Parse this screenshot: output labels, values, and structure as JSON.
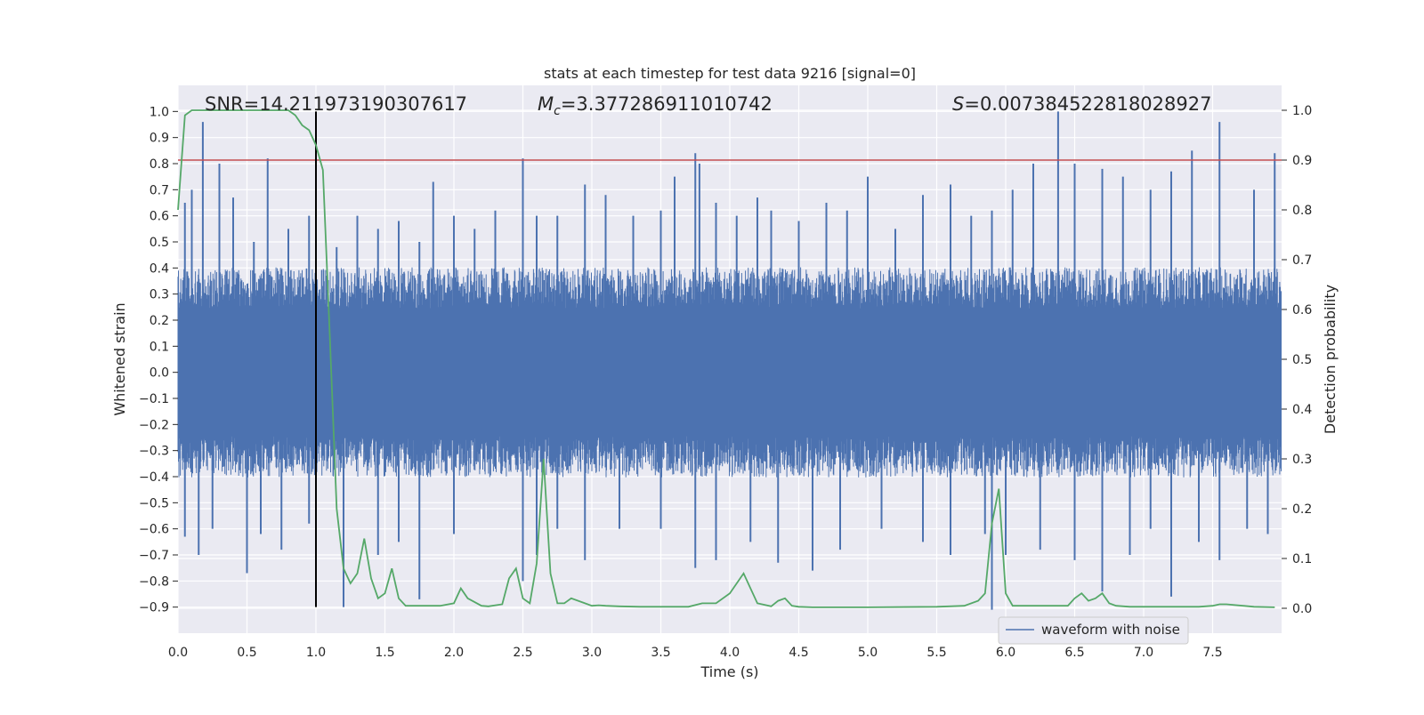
{
  "chart_data": {
    "type": "line",
    "title": "stats at each timestep for test data 9216 [signal=0]",
    "xlabel": "Time (s)",
    "ylabel_left": "Whitened strain",
    "ylabel_right": "Detection probability",
    "xlim": [
      0,
      8
    ],
    "ylim_left": [
      -1.0,
      1.1
    ],
    "ylim_right": [
      -0.05,
      1.05
    ],
    "x_ticks": [
      0.0,
      0.5,
      1.0,
      1.5,
      2.0,
      2.5,
      3.0,
      3.5,
      4.0,
      4.5,
      5.0,
      5.5,
      6.0,
      6.5,
      7.0,
      7.5
    ],
    "x_tick_labels": [
      "0.0",
      "0.5",
      "1.0",
      "1.5",
      "2.0",
      "2.5",
      "3.0",
      "3.5",
      "4.0",
      "4.5",
      "5.0",
      "5.5",
      "6.0",
      "6.5",
      "7.0",
      "7.5"
    ],
    "y_left_ticks": [
      1.0,
      0.9,
      0.8,
      0.7,
      0.6,
      0.5,
      0.4,
      0.3,
      0.2,
      0.1,
      0.0,
      -0.1,
      -0.2,
      -0.3,
      -0.4,
      -0.5,
      -0.6,
      -0.7,
      -0.8,
      -0.9
    ],
    "y_left_tick_labels": [
      "1.0",
      "0.9",
      "0.8",
      "0.7",
      "0.6",
      "0.5",
      "0.4",
      "0.3",
      "0.2",
      "0.1",
      "0.0",
      "−0.1",
      "−0.2",
      "−0.3",
      "−0.4",
      "−0.5",
      "−0.6",
      "−0.7",
      "−0.8",
      "−0.9"
    ],
    "y_right_ticks": [
      1.0,
      0.9,
      0.8,
      0.7,
      0.6,
      0.5,
      0.4,
      0.3,
      0.2,
      0.1,
      0.0
    ],
    "y_right_tick_labels": [
      "1.0",
      "0.9",
      "0.8",
      "0.7",
      "0.6",
      "0.5",
      "0.4",
      "0.3",
      "0.2",
      "0.1",
      "0.0"
    ],
    "grid": true,
    "legend_position": "lower-right",
    "annotations": {
      "snr": "SNR=14.211973190307617",
      "mc_symbol": "M",
      "mc_sub": "c",
      "mc_value": "=3.377286911010742",
      "s_symbol": "S",
      "s_value": "=0.007384522818028927"
    },
    "series": [
      {
        "name": "waveform with noise",
        "axis": "left",
        "color": "#4c72b0",
        "style": "dense-oscillation",
        "typical_envelope": [
          -0.35,
          0.35
        ],
        "x_spikes": [
          0.05,
          0.1,
          0.18,
          0.3,
          0.4,
          0.55,
          0.65,
          0.8,
          0.95,
          1.15,
          1.3,
          1.45,
          1.6,
          1.75,
          1.85,
          2.0,
          2.15,
          2.3,
          2.5,
          2.6,
          2.75,
          2.95,
          3.1,
          3.3,
          3.5,
          3.6,
          3.75,
          3.78,
          3.9,
          4.05,
          4.2,
          4.3,
          4.5,
          4.7,
          4.85,
          5.0,
          5.2,
          5.4,
          5.6,
          5.75,
          5.9,
          6.05,
          6.2,
          6.38,
          6.5,
          6.7,
          6.85,
          7.05,
          7.2,
          7.35,
          7.55,
          7.8,
          7.95
        ],
        "y_spikes": [
          0.65,
          0.7,
          0.96,
          0.8,
          0.67,
          0.5,
          0.82,
          0.55,
          0.6,
          0.48,
          0.6,
          0.55,
          0.58,
          0.5,
          0.73,
          0.6,
          0.55,
          0.62,
          0.82,
          0.6,
          0.6,
          0.72,
          0.68,
          0.6,
          0.62,
          0.75,
          0.84,
          0.8,
          0.65,
          0.6,
          0.67,
          0.62,
          0.58,
          0.65,
          0.62,
          0.75,
          0.55,
          0.68,
          0.72,
          0.6,
          0.62,
          0.7,
          0.8,
          1.0,
          0.8,
          0.78,
          0.75,
          0.7,
          0.77,
          0.85,
          0.96,
          0.7,
          0.84
        ],
        "x_neg_spikes": [
          0.05,
          0.15,
          0.25,
          0.5,
          0.6,
          0.75,
          0.95,
          1.2,
          1.45,
          1.6,
          1.75,
          2.0,
          2.5,
          2.6,
          2.75,
          2.95,
          3.2,
          3.5,
          3.75,
          3.9,
          4.15,
          4.35,
          4.6,
          4.8,
          5.1,
          5.4,
          5.6,
          5.85,
          5.9,
          6.0,
          6.25,
          6.5,
          6.7,
          6.9,
          7.05,
          7.2,
          7.4,
          7.55,
          7.75,
          7.9
        ],
        "y_neg_spikes": [
          -0.63,
          -0.7,
          -0.6,
          -0.77,
          -0.62,
          -0.68,
          -0.58,
          -0.9,
          -0.7,
          -0.65,
          -0.87,
          -0.62,
          -0.8,
          -0.7,
          -0.6,
          -0.72,
          -0.6,
          -0.6,
          -0.75,
          -0.72,
          -0.65,
          -0.73,
          -0.76,
          -0.68,
          -0.6,
          -0.65,
          -0.7,
          -0.62,
          -0.91,
          -0.7,
          -0.68,
          -0.72,
          -0.84,
          -0.7,
          -0.6,
          -0.86,
          -0.65,
          -0.72,
          -0.6,
          -0.62
        ]
      },
      {
        "name": "",
        "axis": "right",
        "color": "#55a868",
        "x": [
          0.0,
          0.05,
          0.1,
          0.2,
          0.3,
          0.4,
          0.5,
          0.6,
          0.7,
          0.8,
          0.85,
          0.9,
          0.95,
          1.0,
          1.05,
          1.1,
          1.15,
          1.2,
          1.25,
          1.3,
          1.35,
          1.4,
          1.45,
          1.5,
          1.55,
          1.6,
          1.65,
          1.7,
          1.8,
          1.9,
          2.0,
          2.05,
          2.1,
          2.2,
          2.25,
          2.35,
          2.4,
          2.45,
          2.5,
          2.55,
          2.6,
          2.65,
          2.7,
          2.75,
          2.8,
          2.85,
          2.95,
          3.0,
          3.05,
          3.1,
          3.2,
          3.35,
          3.5,
          3.7,
          3.8,
          3.9,
          4.0,
          4.1,
          4.2,
          4.3,
          4.35,
          4.4,
          4.45,
          4.5,
          4.6,
          5.0,
          5.5,
          5.7,
          5.8,
          5.85,
          5.9,
          5.95,
          6.0,
          6.05,
          6.1,
          6.2,
          6.3,
          6.45,
          6.5,
          6.55,
          6.6,
          6.65,
          6.7,
          6.75,
          6.8,
          6.9,
          7.0,
          7.2,
          7.4,
          7.5,
          7.55,
          7.6,
          7.8,
          7.95
        ],
        "values": [
          0.8,
          0.99,
          1.0,
          1.0,
          1.0,
          1.0,
          1.0,
          1.0,
          1.0,
          1.0,
          0.99,
          0.97,
          0.96,
          0.93,
          0.88,
          0.55,
          0.2,
          0.08,
          0.05,
          0.07,
          0.14,
          0.06,
          0.02,
          0.03,
          0.08,
          0.02,
          0.005,
          0.005,
          0.005,
          0.005,
          0.01,
          0.04,
          0.02,
          0.005,
          0.004,
          0.008,
          0.06,
          0.08,
          0.02,
          0.01,
          0.09,
          0.3,
          0.07,
          0.01,
          0.01,
          0.02,
          0.01,
          0.005,
          0.006,
          0.005,
          0.004,
          0.003,
          0.003,
          0.003,
          0.01,
          0.01,
          0.03,
          0.07,
          0.01,
          0.004,
          0.015,
          0.02,
          0.005,
          0.003,
          0.002,
          0.002,
          0.003,
          0.005,
          0.015,
          0.03,
          0.17,
          0.24,
          0.03,
          0.005,
          0.005,
          0.005,
          0.005,
          0.005,
          0.02,
          0.03,
          0.015,
          0.02,
          0.03,
          0.01,
          0.005,
          0.003,
          0.003,
          0.003,
          0.003,
          0.005,
          0.008,
          0.008,
          0.003,
          0.002
        ]
      }
    ],
    "hlines": [
      {
        "axis": "right",
        "y": 0.9,
        "color": "#c44e52"
      }
    ],
    "vlines": [
      {
        "x": 1.0,
        "y_from": -0.9,
        "y_to": 1.0,
        "color": "#000000"
      }
    ]
  }
}
